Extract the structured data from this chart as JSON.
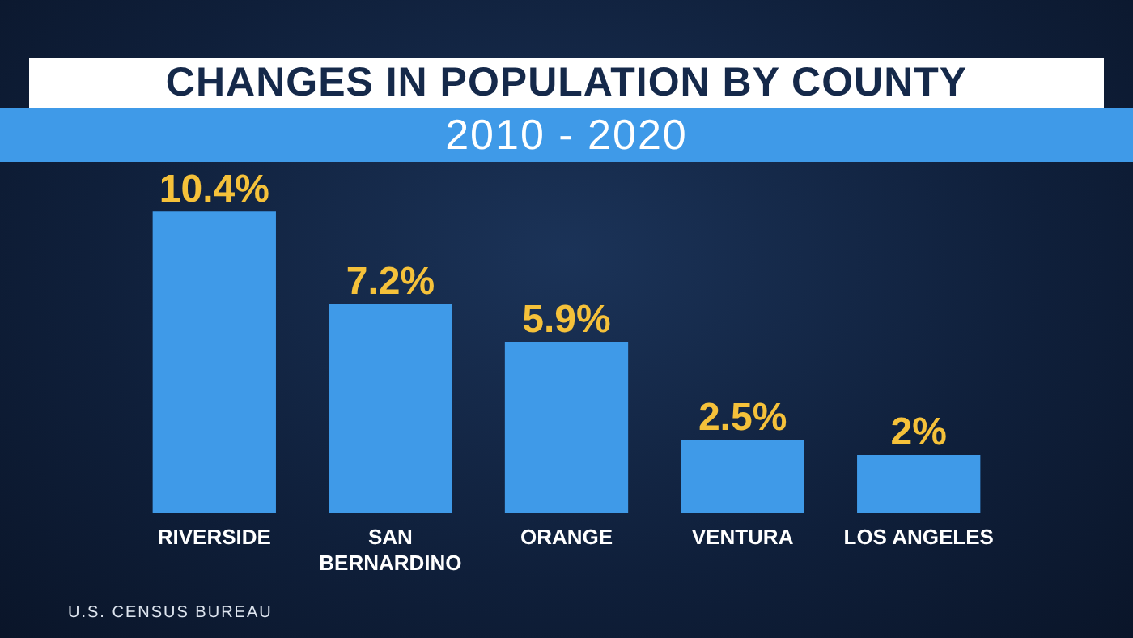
{
  "chart_data": {
    "type": "bar",
    "title": "CHANGES IN POPULATION BY COUNTY",
    "subtitle": "2010 - 2020",
    "categories": [
      "RIVERSIDE",
      "SAN BERNARDINO",
      "ORANGE",
      "VENTURA",
      "LOS ANGELES"
    ],
    "values": [
      10.4,
      7.2,
      5.9,
      2.5,
      2
    ],
    "value_labels": [
      "10.4%",
      "7.2%",
      "5.9%",
      "2.5%",
      "2%"
    ],
    "color": "#3f9ae8",
    "annotations": [
      "U.S. CENSUS BUREAU"
    ],
    "grid": false,
    "legend": false
  }
}
